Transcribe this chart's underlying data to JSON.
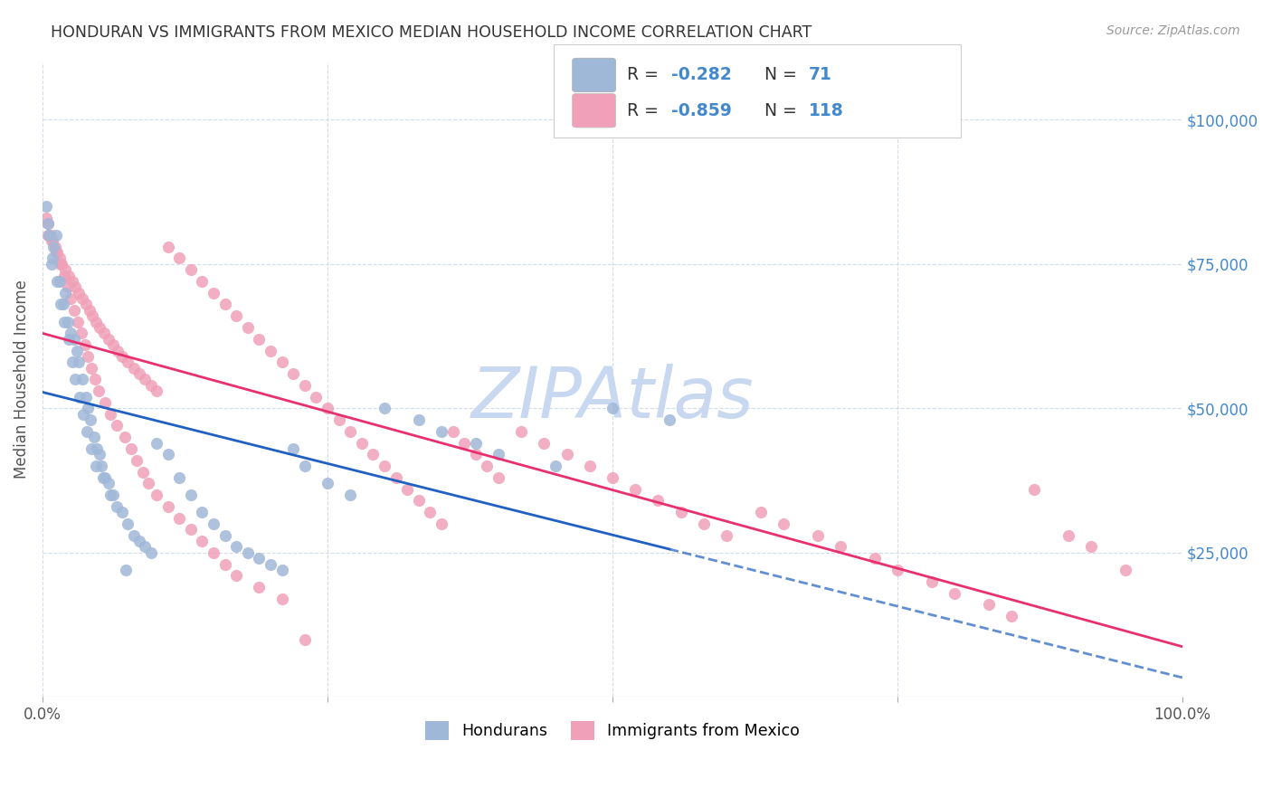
{
  "title": "HONDURAN VS IMMIGRANTS FROM MEXICO MEDIAN HOUSEHOLD INCOME CORRELATION CHART",
  "source": "Source: ZipAtlas.com",
  "ylabel": "Median Household Income",
  "xlim": [
    0,
    1.0
  ],
  "ylim": [
    0,
    110000
  ],
  "yticks": [
    0,
    25000,
    50000,
    75000,
    100000
  ],
  "yticklabels": [
    "",
    "$25,000",
    "$50,000",
    "$75,000",
    "$100,000"
  ],
  "blue_line_color": "#2060c0",
  "pink_line_color": "#e83070",
  "blue_scatter_color": "#a0b8d8",
  "pink_scatter_color": "#f0a0b8",
  "title_color": "#333333",
  "source_color": "#999999",
  "axis_label_color": "#555555",
  "ytick_color": "#4488cc",
  "watermark": "ZIPAtlas",
  "watermark_color": "#c8d8f0",
  "background_color": "#ffffff",
  "legend_color": "#4488cc",
  "blue_x": [
    0.005,
    0.008,
    0.01,
    0.012,
    0.015,
    0.018,
    0.02,
    0.022,
    0.025,
    0.028,
    0.03,
    0.032,
    0.035,
    0.038,
    0.04,
    0.042,
    0.045,
    0.048,
    0.05,
    0.052,
    0.055,
    0.058,
    0.06,
    0.065,
    0.07,
    0.075,
    0.08,
    0.085,
    0.09,
    0.095,
    0.1,
    0.11,
    0.12,
    0.13,
    0.14,
    0.15,
    0.16,
    0.17,
    0.18,
    0.19,
    0.2,
    0.21,
    0.22,
    0.23,
    0.25,
    0.27,
    0.3,
    0.33,
    0.35,
    0.38,
    0.4,
    0.45,
    0.5,
    0.55,
    0.003,
    0.006,
    0.009,
    0.013,
    0.016,
    0.019,
    0.023,
    0.026,
    0.029,
    0.033,
    0.036,
    0.039,
    0.043,
    0.047,
    0.053,
    0.062,
    0.073
  ],
  "blue_y": [
    82000,
    75000,
    78000,
    80000,
    72000,
    68000,
    70000,
    65000,
    63000,
    62000,
    60000,
    58000,
    55000,
    52000,
    50000,
    48000,
    45000,
    43000,
    42000,
    40000,
    38000,
    37000,
    35000,
    33000,
    32000,
    30000,
    28000,
    27000,
    26000,
    25000,
    44000,
    42000,
    38000,
    35000,
    32000,
    30000,
    28000,
    26000,
    25000,
    24000,
    23000,
    22000,
    43000,
    40000,
    37000,
    35000,
    50000,
    48000,
    46000,
    44000,
    42000,
    40000,
    50000,
    48000,
    85000,
    80000,
    76000,
    72000,
    68000,
    65000,
    62000,
    58000,
    55000,
    52000,
    49000,
    46000,
    43000,
    40000,
    38000,
    35000,
    22000
  ],
  "pink_x": [
    0.003,
    0.005,
    0.007,
    0.009,
    0.011,
    0.013,
    0.015,
    0.017,
    0.02,
    0.023,
    0.026,
    0.029,
    0.032,
    0.035,
    0.038,
    0.041,
    0.044,
    0.047,
    0.05,
    0.054,
    0.058,
    0.062,
    0.066,
    0.07,
    0.075,
    0.08,
    0.085,
    0.09,
    0.095,
    0.1,
    0.11,
    0.12,
    0.13,
    0.14,
    0.15,
    0.16,
    0.17,
    0.18,
    0.19,
    0.2,
    0.21,
    0.22,
    0.23,
    0.24,
    0.25,
    0.26,
    0.27,
    0.28,
    0.29,
    0.3,
    0.31,
    0.32,
    0.33,
    0.34,
    0.35,
    0.36,
    0.37,
    0.38,
    0.39,
    0.4,
    0.42,
    0.44,
    0.46,
    0.48,
    0.5,
    0.52,
    0.54,
    0.56,
    0.58,
    0.6,
    0.63,
    0.65,
    0.68,
    0.7,
    0.73,
    0.75,
    0.78,
    0.8,
    0.83,
    0.85,
    0.87,
    0.9,
    0.92,
    0.95,
    0.005,
    0.008,
    0.012,
    0.016,
    0.019,
    0.022,
    0.025,
    0.028,
    0.031,
    0.034,
    0.037,
    0.04,
    0.043,
    0.046,
    0.049,
    0.055,
    0.06,
    0.065,
    0.072,
    0.078,
    0.083,
    0.088,
    0.093,
    0.1,
    0.11,
    0.12,
    0.13,
    0.14,
    0.15,
    0.16,
    0.17,
    0.19,
    0.21,
    0.23
  ],
  "pink_y": [
    83000,
    82000,
    80000,
    79000,
    78000,
    77000,
    76000,
    75000,
    74000,
    73000,
    72000,
    71000,
    70000,
    69000,
    68000,
    67000,
    66000,
    65000,
    64000,
    63000,
    62000,
    61000,
    60000,
    59000,
    58000,
    57000,
    56000,
    55000,
    54000,
    53000,
    78000,
    76000,
    74000,
    72000,
    70000,
    68000,
    66000,
    64000,
    62000,
    60000,
    58000,
    56000,
    54000,
    52000,
    50000,
    48000,
    46000,
    44000,
    42000,
    40000,
    38000,
    36000,
    34000,
    32000,
    30000,
    46000,
    44000,
    42000,
    40000,
    38000,
    46000,
    44000,
    42000,
    40000,
    38000,
    36000,
    34000,
    32000,
    30000,
    28000,
    32000,
    30000,
    28000,
    26000,
    24000,
    22000,
    20000,
    18000,
    16000,
    14000,
    36000,
    28000,
    26000,
    22000,
    80000,
    79000,
    77000,
    75000,
    73000,
    71000,
    69000,
    67000,
    65000,
    63000,
    61000,
    59000,
    57000,
    55000,
    53000,
    51000,
    49000,
    47000,
    45000,
    43000,
    41000,
    39000,
    37000,
    35000,
    33000,
    31000,
    29000,
    27000,
    25000,
    23000,
    21000,
    19000,
    17000,
    10000
  ]
}
